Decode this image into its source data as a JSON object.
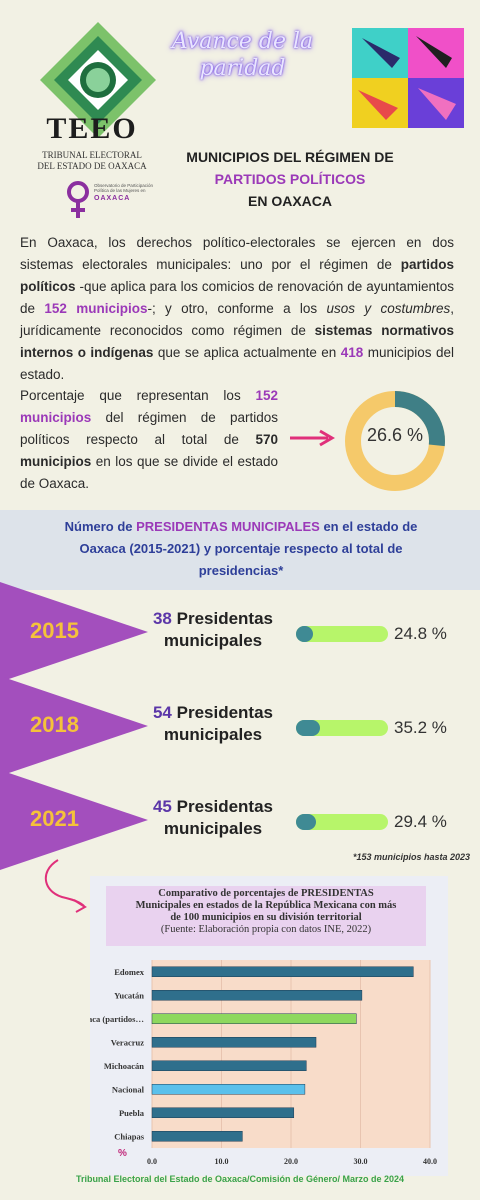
{
  "header": {
    "org_acronym": "TEEO",
    "org_name_line1": "TRIBUNAL ELECTORAL",
    "org_name_line2": "DEL ESTADO DE OAXACA",
    "campaign_title": "Avance de la paridad",
    "observatory_small": "Observatorio de Participación Política de las Mujeres en",
    "observatory_state": "OAXACA"
  },
  "headline": {
    "line1": "MUNICIPIOS DEL RÉGIMEN DE",
    "line2": "PARTIDOS POLÍTICOS",
    "line3": "EN OAXACA"
  },
  "intro": {
    "t1": "En Oaxaca, los derechos político-electorales se ejercen en dos sistemas electorales municipales: uno por el régimen de ",
    "b1": "partidos políticos",
    "t2": " -que aplica para los comicios de renovación de ayuntamientos de ",
    "b2": "152 municipios",
    "t3": "-; y otro, conforme a los ",
    "i1": "usos y costumbres",
    "t4": ", jurídicamente reconocidos como régimen de ",
    "b3": "sistemas normativos internos o indígenas",
    "t5": " que se aplica actualmente en ",
    "b4": "418",
    "t6": " municipios del estado."
  },
  "percentage_block": {
    "t1": "Porcentaje que representan los ",
    "b1": "152 municipios",
    "t2": " del régimen de partidos políticos respecto al total de ",
    "b2": "570 municipios",
    "t3": " en los que se divide el estado de Oaxaca.",
    "donut_value": 26.6,
    "donut_label": "26.6 %"
  },
  "band": {
    "t1": "Número de ",
    "b1": "PRESIDENTAS MUNICIPALES",
    "t2": " en el estado de Oaxaca  (2015-2021) y porcentaje respecto al total de presidencias*"
  },
  "years": [
    {
      "year": "2015",
      "count": "38",
      "label": "Presidentas",
      "label2": "municipales",
      "pct": 24.8,
      "pct_label": "24.8 %"
    },
    {
      "year": "2018",
      "count": "54",
      "label": "Presidentas",
      "label2": "municipales",
      "pct": 35.2,
      "pct_label": "35.2 %"
    },
    {
      "year": "2021",
      "count": "45",
      "label": "Presidentas",
      "label2": "municipales",
      "pct": 29.4,
      "pct_label": "29.4 %"
    }
  ],
  "note": "*153 municipios hasta 2023",
  "chart_header": {
    "line1": "Comparativo de porcentajes de PRESIDENTAS",
    "line2": "Municipales en estados de la República Mexicana con más",
    "line3": "de 100 municipios en su división territorial",
    "source": "(Fuente: Elaboración propia con datos INE, 2022)"
  },
  "chart_data": {
    "type": "bar",
    "orientation": "horizontal",
    "categories": [
      "Edomex",
      "Yucatán",
      "Oaxaca (partidos…",
      "Veracruz",
      "Michoacán",
      "Nacional",
      "Puebla",
      "Chiapas"
    ],
    "values": [
      37.6,
      30.2,
      29.4,
      23.6,
      22.2,
      22.0,
      20.4,
      13.0
    ],
    "colors": [
      "#2f6f8c",
      "#2f6f8c",
      "#8ed85e",
      "#2f6f8c",
      "#2f6f8c",
      "#5bc0eb",
      "#2f6f8c",
      "#2f6f8c"
    ],
    "xlim": [
      0,
      40
    ],
    "xticks": [
      "0.0",
      "10.0",
      "20.0",
      "30.0",
      "40.0"
    ],
    "ylabel": "%"
  },
  "footer": "Tribunal Electoral del Estado de Oaxaca/Comisión de Género/  Marzo de 2024",
  "colors": {
    "background": "#f2f1e4",
    "purple": "#9b39b8",
    "navy": "#2e3f99",
    "gold": "#f5c23a",
    "teal": "#3f8a94",
    "lime": "#b7f56a"
  }
}
